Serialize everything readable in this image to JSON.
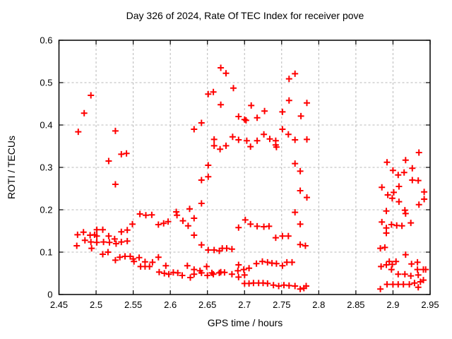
{
  "chart_data": {
    "type": "scatter",
    "title": "Day 326 of 2024, Rate Of TEC Index for receiver pove",
    "xlabel": "GPS time / hours",
    "ylabel": "ROTI / TECUs",
    "xlim": [
      2.45,
      2.95
    ],
    "ylim": [
      0,
      0.6
    ],
    "xtick_labels": [
      "2.45",
      "2.5",
      "2.55",
      "2.6",
      "2.65",
      "2.7",
      "2.75",
      "2.8",
      "2.85",
      "2.9",
      "2.95"
    ],
    "ytick_labels": [
      "0",
      "0.1",
      "0.2",
      "0.3",
      "0.4",
      "0.5",
      "0.6"
    ],
    "grid": true,
    "legend": "none",
    "marker": "plus",
    "marker_color": "#ff0000",
    "points": [
      [
        2.474,
        0.115
      ],
      [
        2.475,
        0.141
      ],
      [
        2.476,
        0.384
      ],
      [
        2.483,
        0.147
      ],
      [
        2.484,
        0.428
      ],
      [
        2.485,
        0.128
      ],
      [
        2.492,
        0.14
      ],
      [
        2.493,
        0.47
      ],
      [
        2.493,
        0.124
      ],
      [
        2.494,
        0.109
      ],
      [
        2.498,
        0.141
      ],
      [
        2.501,
        0.153
      ],
      [
        2.501,
        0.138
      ],
      [
        2.501,
        0.123
      ],
      [
        2.509,
        0.153
      ],
      [
        2.509,
        0.095
      ],
      [
        2.51,
        0.124
      ],
      [
        2.516,
        0.1
      ],
      [
        2.517,
        0.315
      ],
      [
        2.517,
        0.138
      ],
      [
        2.518,
        0.123
      ],
      [
        2.525,
        0.131
      ],
      [
        2.526,
        0.386
      ],
      [
        2.526,
        0.26
      ],
      [
        2.526,
        0.081
      ],
      [
        2.527,
        0.12
      ],
      [
        2.532,
        0.088
      ],
      [
        2.534,
        0.331
      ],
      [
        2.534,
        0.148
      ],
      [
        2.534,
        0.124
      ],
      [
        2.539,
        0.09
      ],
      [
        2.541,
        0.333
      ],
      [
        2.542,
        0.152
      ],
      [
        2.542,
        0.126
      ],
      [
        2.546,
        0.09
      ],
      [
        2.549,
        0.166
      ],
      [
        2.55,
        0.084
      ],
      [
        2.551,
        0.078
      ],
      [
        2.558,
        0.087
      ],
      [
        2.559,
        0.19
      ],
      [
        2.56,
        0.066
      ],
      [
        2.566,
        0.077
      ],
      [
        2.566,
        0.066
      ],
      [
        2.567,
        0.187
      ],
      [
        2.572,
        0.066
      ],
      [
        2.575,
        0.188
      ],
      [
        2.576,
        0.076
      ],
      [
        2.584,
        0.165
      ],
      [
        2.584,
        0.088
      ],
      [
        2.585,
        0.053
      ],
      [
        2.591,
        0.168
      ],
      [
        2.592,
        0.05
      ],
      [
        2.594,
        0.068
      ],
      [
        2.597,
        0.172
      ],
      [
        2.598,
        0.048
      ],
      [
        2.604,
        0.052
      ],
      [
        2.608,
        0.195
      ],
      [
        2.609,
        0.187
      ],
      [
        2.61,
        0.051
      ],
      [
        2.616,
        0.045
      ],
      [
        2.617,
        0.174
      ],
      [
        2.623,
        0.068
      ],
      [
        2.624,
        0.162
      ],
      [
        2.626,
        0.202
      ],
      [
        2.627,
        0.04
      ],
      [
        2.632,
        0.39
      ],
      [
        2.632,
        0.18
      ],
      [
        2.632,
        0.14
      ],
      [
        2.632,
        0.059
      ],
      [
        2.632,
        0.048
      ],
      [
        2.64,
        0.056
      ],
      [
        2.642,
        0.405
      ],
      [
        2.642,
        0.27
      ],
      [
        2.642,
        0.215
      ],
      [
        2.642,
        0.117
      ],
      [
        2.642,
        0.051
      ],
      [
        2.649,
        0.066
      ],
      [
        2.65,
        0.045
      ],
      [
        2.651,
        0.473
      ],
      [
        2.651,
        0.305
      ],
      [
        2.651,
        0.278
      ],
      [
        2.651,
        0.105
      ],
      [
        2.656,
        0.051
      ],
      [
        2.658,
        0.478
      ],
      [
        2.658,
        0.048
      ],
      [
        2.659,
        0.366
      ],
      [
        2.659,
        0.351
      ],
      [
        2.659,
        0.105
      ],
      [
        2.666,
        0.103
      ],
      [
        2.666,
        0.051
      ],
      [
        2.667,
        0.343
      ],
      [
        2.668,
        0.535
      ],
      [
        2.668,
        0.448
      ],
      [
        2.668,
        0.053
      ],
      [
        2.67,
        0.109
      ],
      [
        2.673,
        0.052
      ],
      [
        2.675,
        0.522
      ],
      [
        2.675,
        0.351
      ],
      [
        2.676,
        0.109
      ],
      [
        2.683,
        0.107
      ],
      [
        2.683,
        0.048
      ],
      [
        2.684,
        0.372
      ],
      [
        2.685,
        0.487
      ],
      [
        2.691,
        0.056
      ],
      [
        2.692,
        0.42
      ],
      [
        2.692,
        0.365
      ],
      [
        2.692,
        0.158
      ],
      [
        2.692,
        0.07
      ],
      [
        2.692,
        0.041
      ],
      [
        2.699,
        0.059
      ],
      [
        2.7,
        0.413
      ],
      [
        2.7,
        0.046
      ],
      [
        2.7,
        0.026
      ],
      [
        2.701,
        0.176
      ],
      [
        2.702,
        0.411
      ],
      [
        2.703,
        0.363
      ],
      [
        2.706,
        0.062
      ],
      [
        2.706,
        0.026
      ],
      [
        2.708,
        0.349
      ],
      [
        2.708,
        0.166
      ],
      [
        2.709,
        0.446
      ],
      [
        2.712,
        0.027
      ],
      [
        2.716,
        0.073
      ],
      [
        2.717,
        0.417
      ],
      [
        2.717,
        0.363
      ],
      [
        2.717,
        0.161
      ],
      [
        2.719,
        0.027
      ],
      [
        2.724,
        0.078
      ],
      [
        2.725,
        0.027
      ],
      [
        2.726,
        0.378
      ],
      [
        2.726,
        0.16
      ],
      [
        2.727,
        0.433
      ],
      [
        2.731,
        0.076
      ],
      [
        2.731,
        0.026
      ],
      [
        2.733,
        0.161
      ],
      [
        2.734,
        0.367
      ],
      [
        2.737,
        0.074
      ],
      [
        2.739,
        0.022
      ],
      [
        2.742,
        0.363
      ],
      [
        2.742,
        0.353
      ],
      [
        2.742,
        0.134
      ],
      [
        2.743,
        0.348
      ],
      [
        2.743,
        0.073
      ],
      [
        2.746,
        0.02
      ],
      [
        2.751,
        0.431
      ],
      [
        2.751,
        0.39
      ],
      [
        2.751,
        0.138
      ],
      [
        2.751,
        0.068
      ],
      [
        2.753,
        0.022
      ],
      [
        2.757,
        0.076
      ],
      [
        2.759,
        0.378
      ],
      [
        2.759,
        0.138
      ],
      [
        2.76,
        0.509
      ],
      [
        2.76,
        0.458
      ],
      [
        2.76,
        0.021
      ],
      [
        2.764,
        0.076
      ],
      [
        2.768,
        0.521
      ],
      [
        2.768,
        0.365
      ],
      [
        2.768,
        0.309
      ],
      [
        2.768,
        0.194
      ],
      [
        2.768,
        0.02
      ],
      [
        2.775,
        0.291
      ],
      [
        2.775,
        0.245
      ],
      [
        2.775,
        0.166
      ],
      [
        2.775,
        0.118
      ],
      [
        2.775,
        0.013
      ],
      [
        2.776,
        0.421
      ],
      [
        2.78,
        0.015
      ],
      [
        2.782,
        0.115
      ],
      [
        2.783,
        0.02
      ],
      [
        2.784,
        0.452
      ],
      [
        2.784,
        0.366
      ],
      [
        2.784,
        0.229
      ],
      [
        2.883,
        0.109
      ],
      [
        2.883,
        0.013
      ],
      [
        2.884,
        0.066
      ],
      [
        2.885,
        0.253
      ],
      [
        2.885,
        0.171
      ],
      [
        2.889,
        0.111
      ],
      [
        2.891,
        0.197
      ],
      [
        2.891,
        0.157
      ],
      [
        2.891,
        0.145
      ],
      [
        2.891,
        0.07
      ],
      [
        2.892,
        0.312
      ],
      [
        2.892,
        0.024
      ],
      [
        2.893,
        0.235
      ],
      [
        2.895,
        0.078
      ],
      [
        2.898,
        0.165
      ],
      [
        2.898,
        0.059
      ],
      [
        2.899,
        0.227
      ],
      [
        2.899,
        0.071
      ],
      [
        2.9,
        0.293
      ],
      [
        2.9,
        0.024
      ],
      [
        2.901,
        0.241
      ],
      [
        2.904,
        0.078
      ],
      [
        2.905,
        0.163
      ],
      [
        2.907,
        0.282
      ],
      [
        2.907,
        0.048
      ],
      [
        2.907,
        0.024
      ],
      [
        2.908,
        0.255
      ],
      [
        2.908,
        0.219
      ],
      [
        2.912,
        0.162
      ],
      [
        2.914,
        0.024
      ],
      [
        2.915,
        0.288
      ],
      [
        2.916,
        0.199
      ],
      [
        2.916,
        0.048
      ],
      [
        2.917,
        0.317
      ],
      [
        2.917,
        0.191
      ],
      [
        2.917,
        0.094
      ],
      [
        2.922,
        0.024
      ],
      [
        2.924,
        0.169
      ],
      [
        2.924,
        0.044
      ],
      [
        2.925,
        0.072
      ],
      [
        2.926,
        0.298
      ],
      [
        2.926,
        0.27
      ],
      [
        2.929,
        0.027
      ],
      [
        2.933,
        0.076
      ],
      [
        2.933,
        0.059
      ],
      [
        2.934,
        0.269
      ],
      [
        2.934,
        0.046
      ],
      [
        2.934,
        0.017
      ],
      [
        2.935,
        0.335
      ],
      [
        2.935,
        0.212
      ],
      [
        2.937,
        0.03
      ],
      [
        2.941,
        0.059
      ],
      [
        2.941,
        0.034
      ],
      [
        2.942,
        0.242
      ],
      [
        2.942,
        0.225
      ],
      [
        2.944,
        0.059
      ]
    ]
  }
}
